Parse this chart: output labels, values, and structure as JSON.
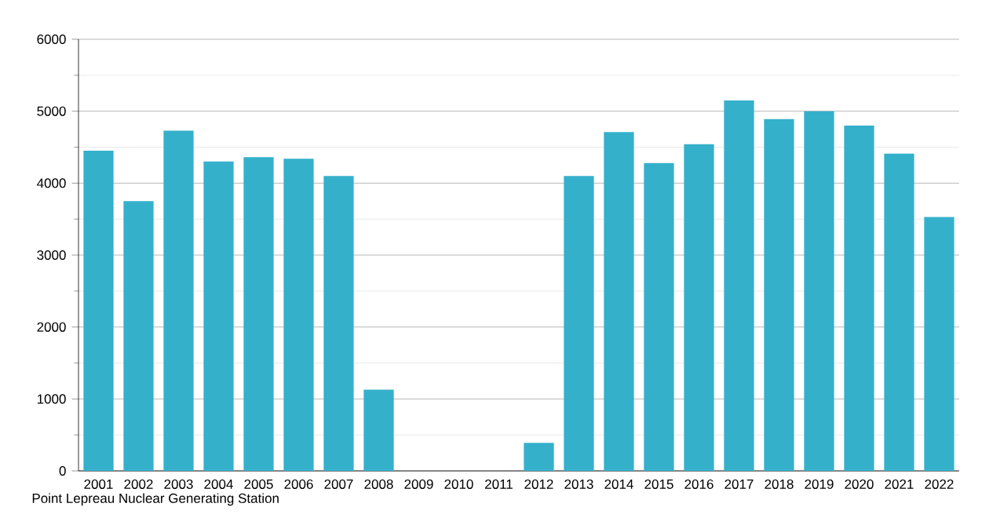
{
  "chart_data": {
    "type": "bar",
    "categories": [
      "2001",
      "2002",
      "2003",
      "2004",
      "2005",
      "2006",
      "2007",
      "2008",
      "2009",
      "2010",
      "2011",
      "2012",
      "2013",
      "2014",
      "2015",
      "2016",
      "2017",
      "2018",
      "2019",
      "2020",
      "2021",
      "2022"
    ],
    "values": [
      4450,
      3750,
      4730,
      4300,
      4360,
      4340,
      4100,
      1130,
      0,
      0,
      0,
      390,
      4100,
      4710,
      4280,
      4540,
      5150,
      4890,
      5000,
      4800,
      4410,
      3530
    ],
    "color": "#35b0cb",
    "ylim": [
      0,
      6000
    ],
    "yticks": [
      0,
      1000,
      2000,
      3000,
      4000,
      5000,
      6000
    ],
    "grid": "y",
    "annotations": [
      "Point Lepreau Nuclear Generating Station"
    ]
  }
}
